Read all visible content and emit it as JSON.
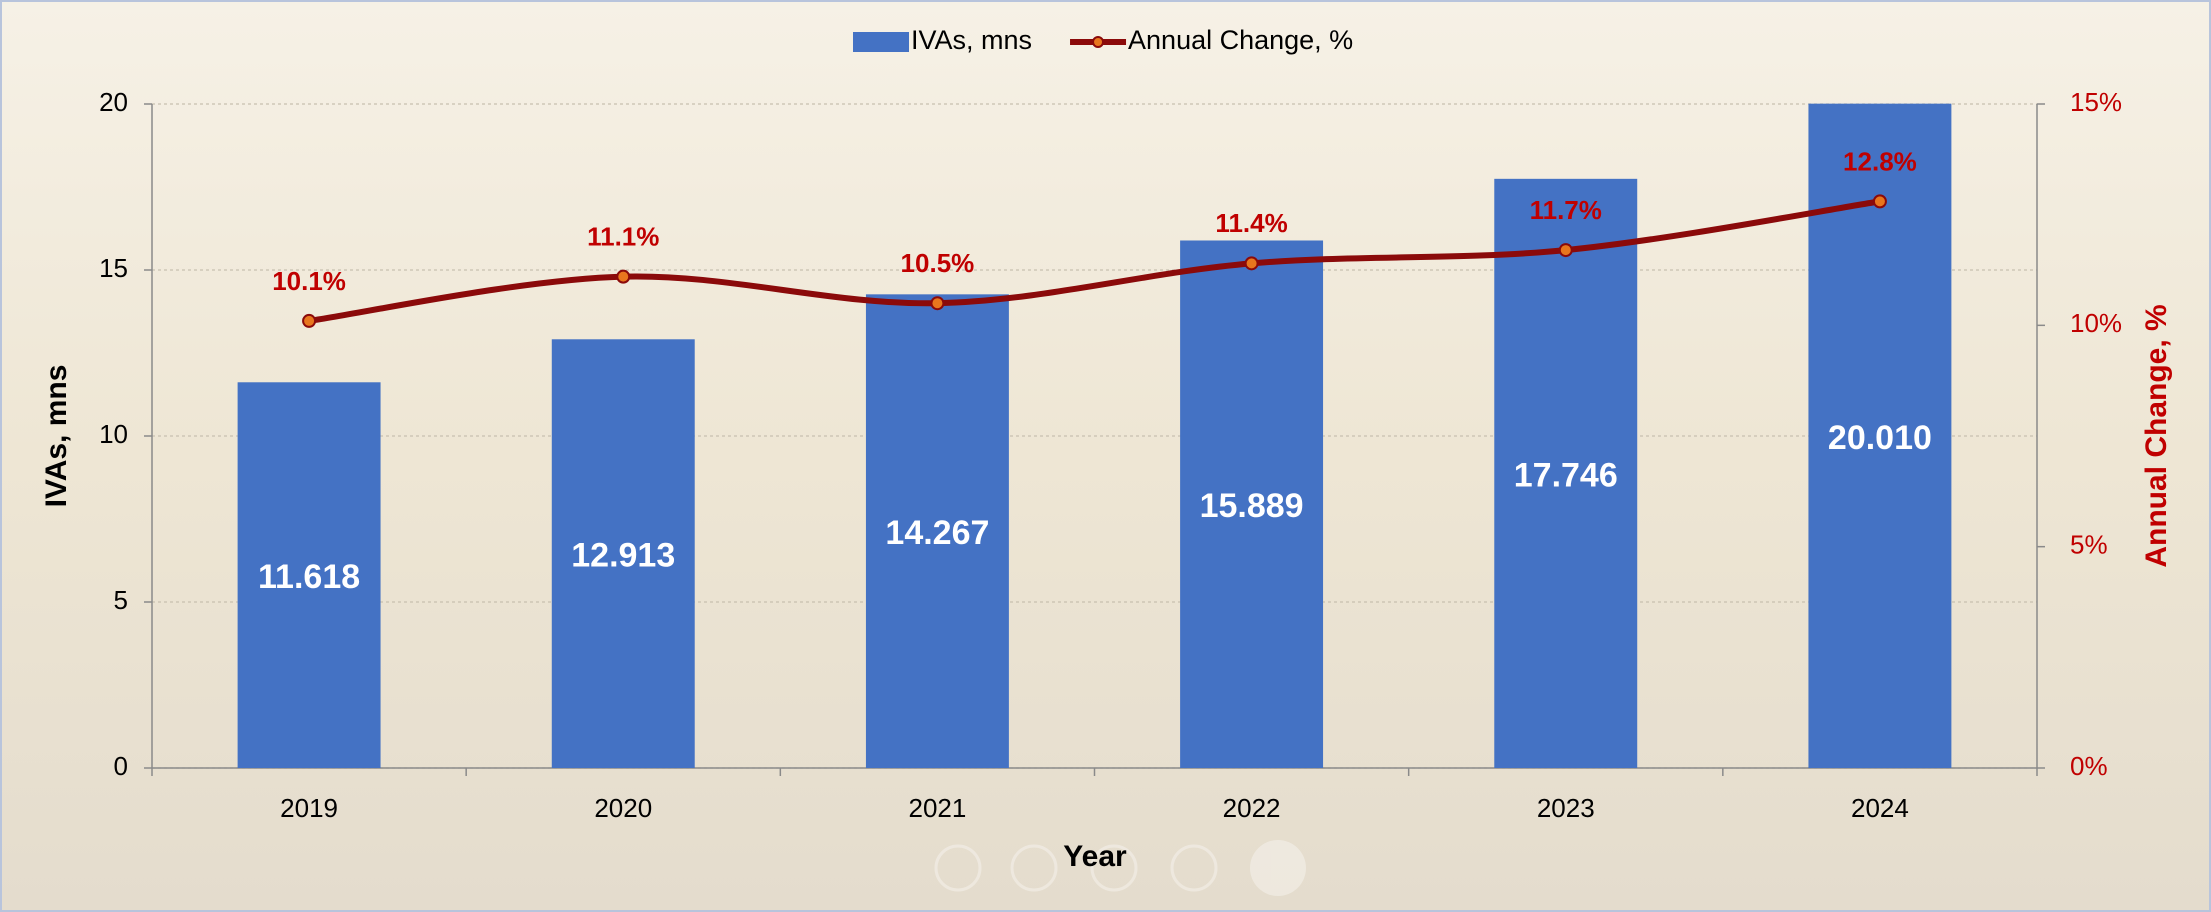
{
  "chart_data": {
    "type": "bar_line",
    "x_label": "Year",
    "y_label": "IVAs,  mns",
    "y2_label": "Annual Change, %",
    "categories": [
      "2019",
      "2020",
      "2021",
      "2022",
      "2023",
      "2024"
    ],
    "series": [
      {
        "name": "IVAs, mns",
        "type": "bar",
        "color": "#4472c4",
        "values": [
          11.618,
          12.913,
          14.267,
          15.889,
          17.746,
          20.01
        ],
        "value_labels": [
          "11.618",
          "12.913",
          "14.267",
          "15.889",
          "17.746",
          "20.010"
        ]
      },
      {
        "name": "Annual Change, %",
        "type": "line",
        "axis": "y2",
        "color": "#8b0a0a",
        "values": [
          10.1,
          11.1,
          10.5,
          11.4,
          11.7,
          12.8
        ],
        "value_labels": [
          "10.1%",
          "11.1%",
          "10.5%",
          "11.4%",
          "11.7%",
          "12.8%"
        ]
      }
    ],
    "ylim": [
      0,
      20
    ],
    "yticks": [
      0,
      5,
      10,
      15,
      20
    ],
    "y2lim": [
      0,
      15
    ],
    "y2ticks": [
      {
        "value": 0,
        "label": "0%"
      },
      {
        "value": 5,
        "label": "5%"
      },
      {
        "value": 10,
        "label": "10%"
      },
      {
        "value": 15,
        "label": "15%"
      }
    ],
    "grid": true,
    "legend": "top"
  }
}
